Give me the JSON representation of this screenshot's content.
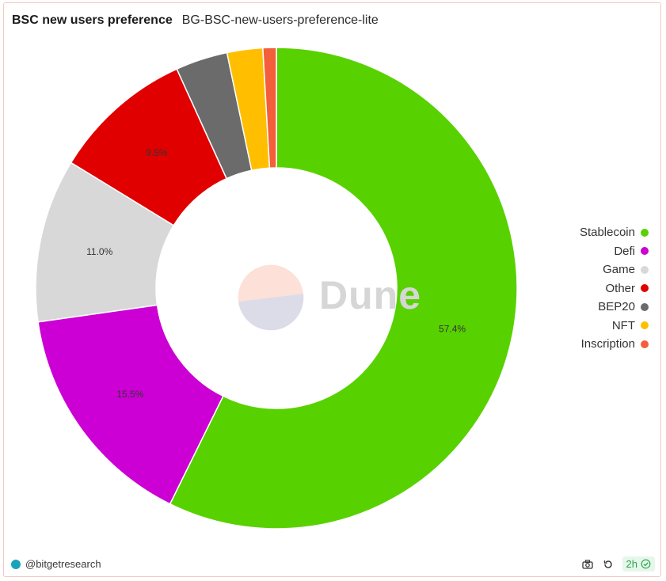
{
  "header": {
    "title": "BSC new users preference",
    "subtitle": "BG-BSC-new-users-preference-lite"
  },
  "watermark": {
    "text": "Dune"
  },
  "chart_data": {
    "type": "pie",
    "donut": true,
    "title": "BSC new users preference",
    "legend_position": "right",
    "slices": [
      {
        "label": "Stablecoin",
        "value": 57.4,
        "color": "#58d100",
        "data_label": "57.4%"
      },
      {
        "label": "Defi",
        "value": 15.5,
        "color": "#cc00d4",
        "data_label": "15.5%"
      },
      {
        "label": "Game",
        "value": 11.0,
        "color": "#d8d8d8",
        "data_label": "11.0%"
      },
      {
        "label": "Other",
        "value": 9.5,
        "color": "#e10000",
        "data_label": "9.5%"
      },
      {
        "label": "BEP20",
        "value": 3.5,
        "color": "#6b6b6b",
        "data_label": ""
      },
      {
        "label": "NFT",
        "value": 2.4,
        "color": "#ffbf00",
        "data_label": ""
      },
      {
        "label": "Inscription",
        "value": 0.9,
        "color": "#f25f3a",
        "data_label": ""
      }
    ]
  },
  "footer": {
    "author": "@bitgetresearch",
    "refresh_badge": "2h",
    "icons": [
      "camera-icon",
      "refresh-icon",
      "check-circle-icon"
    ]
  }
}
